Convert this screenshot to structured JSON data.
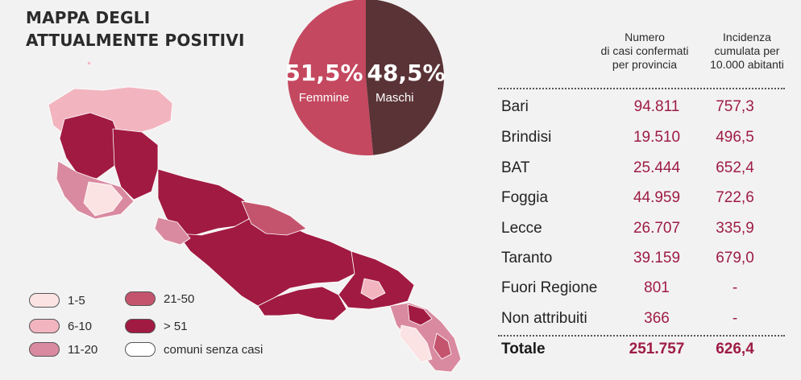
{
  "title": {
    "line1": "MAPPA DEGLI",
    "line2": "ATTUALMENTE POSITIVI"
  },
  "pie": {
    "female_pct": "51,5%",
    "female_label": "Femmine",
    "male_pct": "48,5%",
    "male_label": "Maschi",
    "female_share": 0.515,
    "female_color": "#c4485f",
    "male_color": "#5a3336"
  },
  "table": {
    "col_cases_header": [
      "Numero",
      "di casi confermati",
      "per provincia"
    ],
    "col_incidence_header": [
      "Incidenza",
      "cumulata per",
      "10.000 abitanti"
    ],
    "rows": [
      {
        "name": "Bari",
        "cases": "94.811",
        "incidence": "757,3"
      },
      {
        "name": "Brindisi",
        "cases": "19.510",
        "incidence": "496,5"
      },
      {
        "name": "BAT",
        "cases": "25.444",
        "incidence": "652,4"
      },
      {
        "name": "Foggia",
        "cases": "44.959",
        "incidence": "722,6"
      },
      {
        "name": "Lecce",
        "cases": "26.707",
        "incidence": "335,9"
      },
      {
        "name": "Taranto",
        "cases": "39.159",
        "incidence": "679,0"
      },
      {
        "name": "Fuori Regione",
        "cases": "801",
        "incidence": "-"
      },
      {
        "name": "Non attribuiti",
        "cases": "366",
        "incidence": "-"
      }
    ],
    "total": {
      "name": "Totale",
      "cases": "251.757",
      "incidence": "626,4"
    },
    "value_color": "#9d1c45"
  },
  "legend": [
    {
      "label": "1-5",
      "color": "#fbe3e3"
    },
    {
      "label": "6-10",
      "color": "#f2b5bf"
    },
    {
      "label": "11-20",
      "color": "#d98aa0"
    },
    {
      "label": "21-50",
      "color": "#c4546d"
    },
    {
      "label": "> 51",
      "color": "#a11a42"
    },
    {
      "label": "comuni senza casi",
      "color": "#ffffff"
    }
  ]
}
